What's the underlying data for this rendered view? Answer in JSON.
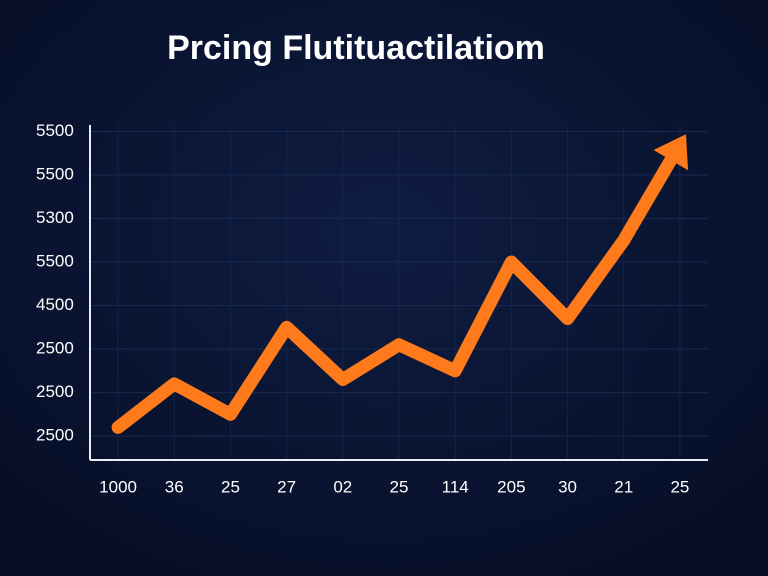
{
  "chart_data": {
    "type": "line",
    "title": "Prcing Flutituactilatiom",
    "categories": [
      "1000",
      "36",
      "25",
      "27",
      "02",
      "25",
      "114",
      "205",
      "30",
      "21",
      "25"
    ],
    "series": [
      {
        "name": "price",
        "color": "#ff7a1a",
        "values": [
          0.2,
          1.2,
          0.5,
          2.5,
          1.3,
          2.1,
          1.5,
          4.0,
          2.7,
          4.5,
          6.7
        ]
      }
    ],
    "ylim": [
      -0.55,
      7.15
    ],
    "yticks": [
      {
        "value": 0,
        "label": "2500"
      },
      {
        "value": 1,
        "label": "2500"
      },
      {
        "value": 2,
        "label": "2500"
      },
      {
        "value": 3,
        "label": "4500"
      },
      {
        "value": 4,
        "label": "5500"
      },
      {
        "value": 5,
        "label": "5300"
      },
      {
        "value": 6,
        "label": "5500"
      },
      {
        "value": 7,
        "label": "5500"
      }
    ],
    "grid": true
  }
}
